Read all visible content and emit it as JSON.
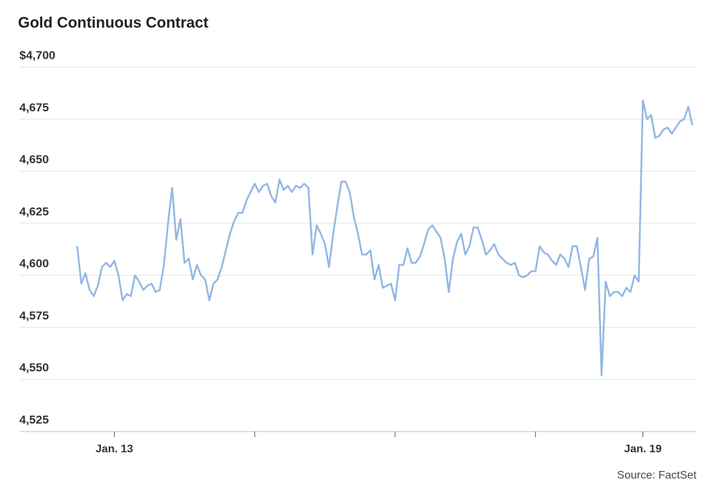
{
  "chart_data": {
    "type": "line",
    "title": "Gold Continuous Contract",
    "source": "Source: FactSet",
    "series": [
      {
        "name": "Gold",
        "color": "#93b7e3",
        "values": [
          4614,
          4596,
          4601,
          4593,
          4590,
          4595,
          4604,
          4606,
          4604,
          4607,
          4600,
          4588,
          4591,
          4590,
          4600,
          4597,
          4593,
          4595,
          4596,
          4592,
          4593,
          4605,
          4625,
          4642,
          4617,
          4627,
          4606,
          4608,
          4598,
          4605,
          4600,
          4598,
          4588,
          4596,
          4598,
          4604,
          4612,
          4620,
          4626,
          4630,
          4630,
          4636,
          4640,
          4644,
          4640,
          4643,
          4644,
          4638,
          4635,
          4646,
          4641,
          4643,
          4640,
          4643,
          4642,
          4644,
          4642,
          4610,
          4624,
          4620,
          4615,
          4604,
          4620,
          4633,
          4645,
          4645,
          4640,
          4628,
          4620,
          4610,
          4610,
          4612,
          4598,
          4605,
          4594,
          4595,
          4596,
          4588,
          4605,
          4605,
          4613,
          4606,
          4606,
          4609,
          4615,
          4622,
          4624,
          4621,
          4618,
          4608,
          4592,
          4608,
          4616,
          4620,
          4610,
          4614,
          4623,
          4623,
          4617,
          4610,
          4612,
          4615,
          4610,
          4608,
          4606,
          4605,
          4606,
          4600,
          4599,
          4600,
          4602,
          4602,
          4614,
          4611,
          4610,
          4607,
          4605,
          4610,
          4608,
          4604,
          4614,
          4614,
          4604,
          4593,
          4608,
          4609,
          4618,
          4552,
          4597,
          4590,
          4592,
          4592,
          4590,
          4594,
          4592,
          4600,
          4597,
          4684,
          4675,
          4677,
          4666,
          4667,
          4670,
          4671,
          4668,
          4671,
          4674,
          4675,
          4681,
          4672
        ]
      }
    ],
    "xlim": [
      -14,
      150
    ],
    "xticks": [
      {
        "value": 9,
        "label": "Jan. 13"
      },
      {
        "value": 43,
        "label": null
      },
      {
        "value": 77,
        "label": null
      },
      {
        "value": 111,
        "label": null
      },
      {
        "value": 137,
        "label": "Jan. 19"
      }
    ],
    "ylim": [
      4525,
      4700
    ],
    "yticks": [
      {
        "value": 4525,
        "label": "4,525"
      },
      {
        "value": 4550,
        "label": "4,550"
      },
      {
        "value": 4575,
        "label": "4,575"
      },
      {
        "value": 4600,
        "label": "4,600"
      },
      {
        "value": 4625,
        "label": "4,625"
      },
      {
        "value": 4650,
        "label": "4,650"
      },
      {
        "value": 4675,
        "label": "4,675"
      },
      {
        "value": 4700,
        "label": "$4,700"
      }
    ],
    "grid": true
  }
}
